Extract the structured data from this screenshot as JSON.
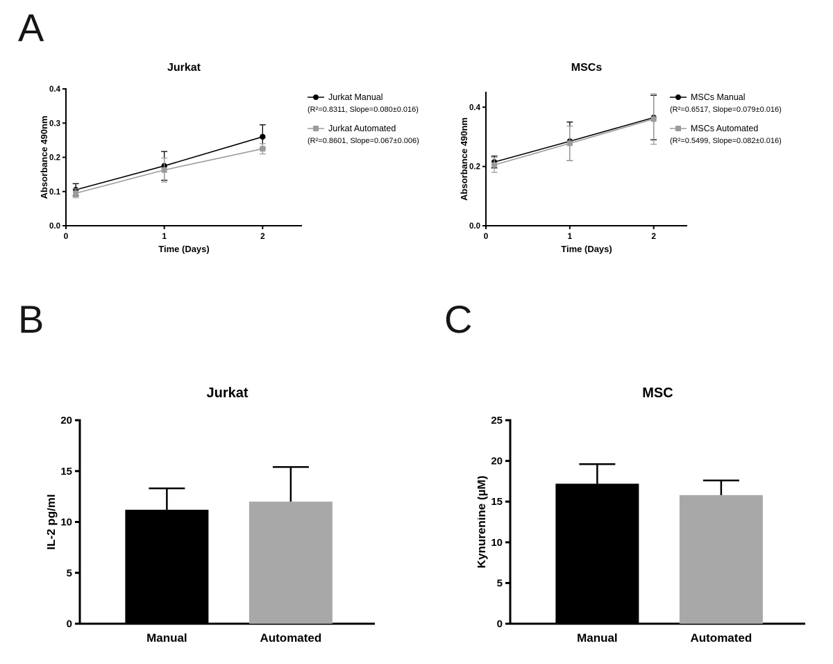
{
  "figure": {
    "background": "#ffffff"
  },
  "panels": [
    {
      "label": "A"
    },
    {
      "label": "B"
    },
    {
      "label": "C"
    }
  ],
  "colors": {
    "manual": "#000000",
    "automated": "#a8a8a8",
    "axis": "#000000"
  },
  "chart_data": [
    {
      "id": "jurkat-proliferation",
      "panel": "A",
      "type": "line",
      "title": "Jurkat",
      "xlabel": "Time (Days)",
      "ylabel": "Absorbance 490nm",
      "xlim": [
        0,
        2.4
      ],
      "ylim": [
        0,
        0.4
      ],
      "xticks": [
        0,
        1,
        2
      ],
      "yticks": [
        0,
        0.1,
        0.2,
        0.3,
        0.4
      ],
      "ytick_decimals": 1,
      "legend_position": "right",
      "series": [
        {
          "name": "Jurkat Manual",
          "stats": "(R²=0.8311, Slope=0.080±0.016)",
          "marker": "circle",
          "color": "#000000",
          "x": [
            0.1,
            1,
            2
          ],
          "y": [
            0.105,
            0.175,
            0.26
          ],
          "err": [
            0.018,
            0.042,
            0.035
          ]
        },
        {
          "name": "Jurkat Automated",
          "stats": "(R²=0.8601, Slope=0.067±0.006)",
          "marker": "square",
          "color": "#9b9b9b",
          "x": [
            0.1,
            1,
            2
          ],
          "y": [
            0.095,
            0.163,
            0.225
          ],
          "err": [
            0.013,
            0.035,
            0.015
          ]
        }
      ]
    },
    {
      "id": "mscs-proliferation",
      "panel": "A",
      "type": "line",
      "title": "MSCs",
      "xlabel": "Time (Days)",
      "ylabel": "Absorbance 490nm",
      "xlim": [
        0,
        2.4
      ],
      "ylim": [
        0,
        0.45
      ],
      "xticks": [
        0,
        1,
        2
      ],
      "yticks": [
        0,
        0.2,
        0.4
      ],
      "ytick_decimals": 1,
      "legend_position": "right",
      "series": [
        {
          "name": "MSCs Manual",
          "stats": "(R²=0.6517, Slope=0.079±0.016)",
          "marker": "circle",
          "color": "#000000",
          "x": [
            0.1,
            1,
            2
          ],
          "y": [
            0.215,
            0.285,
            0.365
          ],
          "err": [
            0.02,
            0.065,
            0.075
          ]
        },
        {
          "name": "MSCs Automated",
          "stats": "(R²=0.5499, Slope=0.082±0.016)",
          "marker": "square",
          "color": "#9b9b9b",
          "x": [
            0.1,
            1,
            2
          ],
          "y": [
            0.205,
            0.278,
            0.36
          ],
          "err": [
            0.025,
            0.058,
            0.085
          ]
        }
      ]
    },
    {
      "id": "jurkat-il2",
      "panel": "B",
      "type": "bar",
      "title": "Jurkat",
      "xlabel": "",
      "ylabel": "IL-2 pg/ml",
      "ylim": [
        0,
        20
      ],
      "yticks": [
        0,
        5,
        10,
        15,
        20
      ],
      "categories": [
        "Manual",
        "Automated"
      ],
      "values": [
        11.2,
        12.0
      ],
      "errors": [
        2.1,
        3.4
      ],
      "bar_colors": [
        "#000000",
        "#a8a8a8"
      ]
    },
    {
      "id": "msc-kynurenine",
      "panel": "C",
      "type": "bar",
      "title": "MSC",
      "xlabel": "",
      "ylabel": "Kynurenine (µM)",
      "ylim": [
        0,
        25
      ],
      "yticks": [
        0,
        5,
        10,
        15,
        20,
        25
      ],
      "categories": [
        "Manual",
        "Automated"
      ],
      "values": [
        17.2,
        15.8
      ],
      "errors": [
        2.4,
        1.8
      ],
      "bar_colors": [
        "#000000",
        "#a8a8a8"
      ]
    }
  ]
}
